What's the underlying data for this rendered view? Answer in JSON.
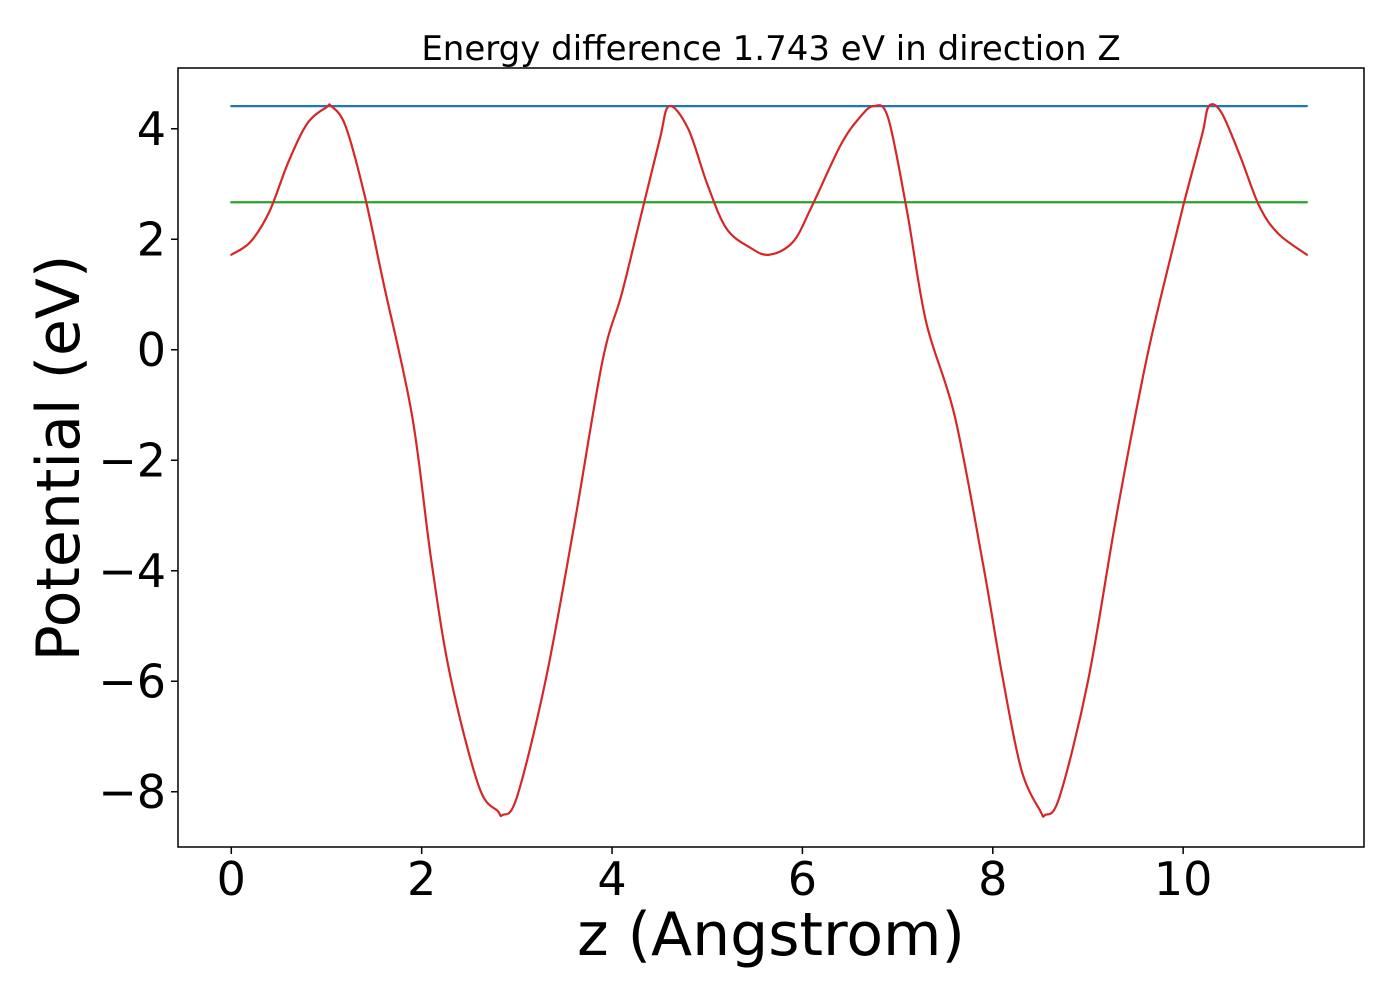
{
  "chart_data": {
    "type": "line",
    "title": "Energy difference 1.743 eV in direction Z",
    "xlabel": "z (Angstrom)",
    "ylabel": "Potential (eV)",
    "xlim": [
      -0.56,
      11.9
    ],
    "ylim": [
      -9.0,
      5.1
    ],
    "xticks": [
      0,
      2,
      4,
      6,
      8,
      10
    ],
    "xtick_labels": [
      "0",
      "2",
      "4",
      "6",
      "8",
      "10"
    ],
    "yticks": [
      -8,
      -6,
      -4,
      -2,
      0,
      2,
      4
    ],
    "ytick_labels": [
      "−8",
      "−6",
      "−4",
      "−2",
      "0",
      "2",
      "4"
    ],
    "grid": false,
    "legend": "none",
    "series": [
      {
        "color": "#1f77b4",
        "x": [
          0,
          11.3
        ],
        "y": [
          4.41,
          4.41
        ]
      },
      {
        "color": "#2ca02c",
        "x": [
          0,
          11.3
        ],
        "y": [
          2.67,
          2.67
        ]
      },
      {
        "color": "#d62728",
        "x": [
          0.0,
          0.2,
          0.4,
          0.6,
          0.8,
          1.0,
          1.05,
          1.2,
          1.4,
          1.6,
          1.9,
          2.1,
          2.3,
          2.6,
          2.8,
          2.85,
          3.0,
          3.3,
          3.6,
          3.9,
          4.1,
          4.3,
          4.5,
          4.6,
          4.8,
          5.0,
          5.2,
          5.45,
          5.65,
          5.9,
          6.1,
          6.4,
          6.6,
          6.75,
          6.9,
          7.1,
          7.3,
          7.6,
          7.9,
          8.1,
          8.3,
          8.5,
          8.55,
          8.7,
          9.0,
          9.3,
          9.6,
          9.8,
          10.0,
          10.2,
          10.27,
          10.4,
          10.6,
          10.8,
          11.0,
          11.3
        ],
        "y": [
          1.72,
          1.95,
          2.5,
          3.4,
          4.1,
          4.39,
          4.41,
          4.05,
          2.8,
          1.2,
          -1.2,
          -3.8,
          -5.9,
          -7.9,
          -8.35,
          -8.42,
          -8.1,
          -6.0,
          -3.2,
          -0.2,
          1.0,
          2.4,
          3.8,
          4.41,
          4.0,
          3.0,
          2.2,
          1.85,
          1.72,
          1.95,
          2.6,
          3.7,
          4.2,
          4.41,
          4.2,
          2.5,
          0.5,
          -1.2,
          -3.9,
          -5.9,
          -7.6,
          -8.35,
          -8.42,
          -8.1,
          -6.0,
          -3.0,
          -0.3,
          1.2,
          2.6,
          3.9,
          4.41,
          4.3,
          3.5,
          2.6,
          2.1,
          1.72
        ]
      }
    ]
  }
}
